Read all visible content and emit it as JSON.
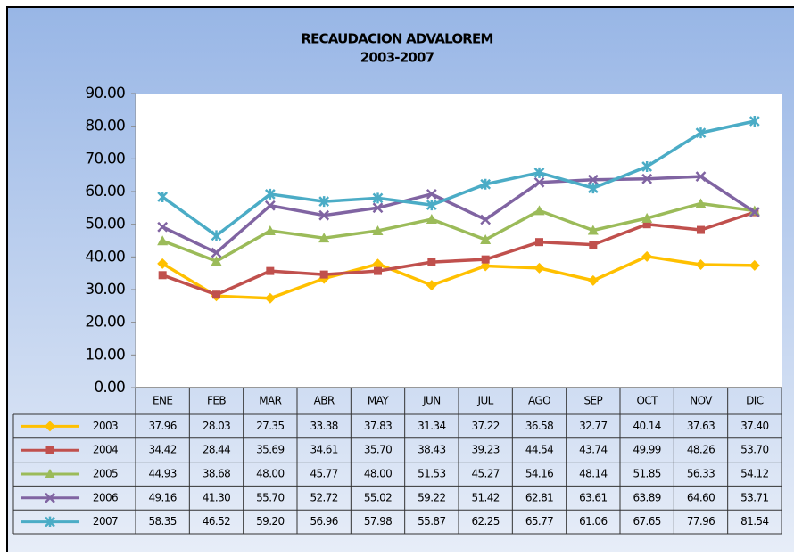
{
  "chart_data": {
    "type": "line",
    "title": "RECAUDACION ADVALOREM",
    "subtitle": "2003-2007",
    "categories": [
      "ENE",
      "FEB",
      "MAR",
      "ABR",
      "MAY",
      "JUN",
      "JUL",
      "AGO",
      "SEP",
      "OCT",
      "NOV",
      "DIC"
    ],
    "ylim": [
      0,
      90
    ],
    "yticks": [
      {
        "value": 0,
        "label": "0.00"
      },
      {
        "value": 10,
        "label": "10.00"
      },
      {
        "value": 20,
        "label": "20.00"
      },
      {
        "value": 30,
        "label": "30.00"
      },
      {
        "value": 40,
        "label": "40.00"
      },
      {
        "value": 50,
        "label": "50.00"
      },
      {
        "value": 60,
        "label": "60.00"
      },
      {
        "value": 70,
        "label": "70.00"
      },
      {
        "value": 80,
        "label": "80.00"
      },
      {
        "value": 90,
        "label": "90.00"
      }
    ],
    "grid": false,
    "series": [
      {
        "name": "2003",
        "color": "#ffc000",
        "marker": "diamond",
        "values": [
          37.96,
          28.03,
          27.35,
          33.38,
          37.83,
          31.34,
          37.22,
          36.58,
          32.77,
          40.14,
          37.63,
          37.4
        ],
        "value_labels": [
          "37.96",
          "28.03",
          "27.35",
          "33.38",
          "37.83",
          "31.34",
          "37.22",
          "36.58",
          "32.77",
          "40.14",
          "37.63",
          "37.40"
        ]
      },
      {
        "name": "2004",
        "color": "#c0504d",
        "marker": "square",
        "values": [
          34.42,
          28.44,
          35.69,
          34.61,
          35.7,
          38.43,
          39.23,
          44.54,
          43.74,
          49.99,
          48.26,
          53.7
        ],
        "value_labels": [
          "34.42",
          "28.44",
          "35.69",
          "34.61",
          "35.70",
          "38.43",
          "39.23",
          "44.54",
          "43.74",
          "49.99",
          "48.26",
          "53.70"
        ]
      },
      {
        "name": "2005",
        "color": "#9bbb59",
        "marker": "triangle",
        "values": [
          44.93,
          38.68,
          48,
          45.77,
          48,
          51.53,
          45.27,
          54.16,
          48.14,
          51.85,
          56.33,
          54.12
        ],
        "value_labels": [
          "44.93",
          "38.68",
          "48.00",
          "45.77",
          "48.00",
          "51.53",
          "45.27",
          "54.16",
          "48.14",
          "51.85",
          "56.33",
          "54.12"
        ]
      },
      {
        "name": "2006",
        "color": "#8064a2",
        "marker": "x",
        "values": [
          49.16,
          41.3,
          55.7,
          52.72,
          55.02,
          59.22,
          51.42,
          62.81,
          63.61,
          63.89,
          64.6,
          53.71
        ],
        "value_labels": [
          "49.16",
          "41.30",
          "55.70",
          "52.72",
          "55.02",
          "59.22",
          "51.42",
          "62.81",
          "63.61",
          "63.89",
          "64.60",
          "53.71"
        ]
      },
      {
        "name": "2007",
        "color": "#4bacc6",
        "marker": "star",
        "values": [
          58.35,
          46.52,
          59.2,
          56.96,
          57.98,
          55.87,
          62.25,
          65.77,
          61.06,
          67.65,
          77.96,
          81.54
        ],
        "value_labels": [
          "58.35",
          "46.52",
          "59.20",
          "56.96",
          "57.98",
          "55.87",
          "62.25",
          "65.77",
          "61.06",
          "67.65",
          "77.96",
          "81.54"
        ]
      }
    ]
  }
}
